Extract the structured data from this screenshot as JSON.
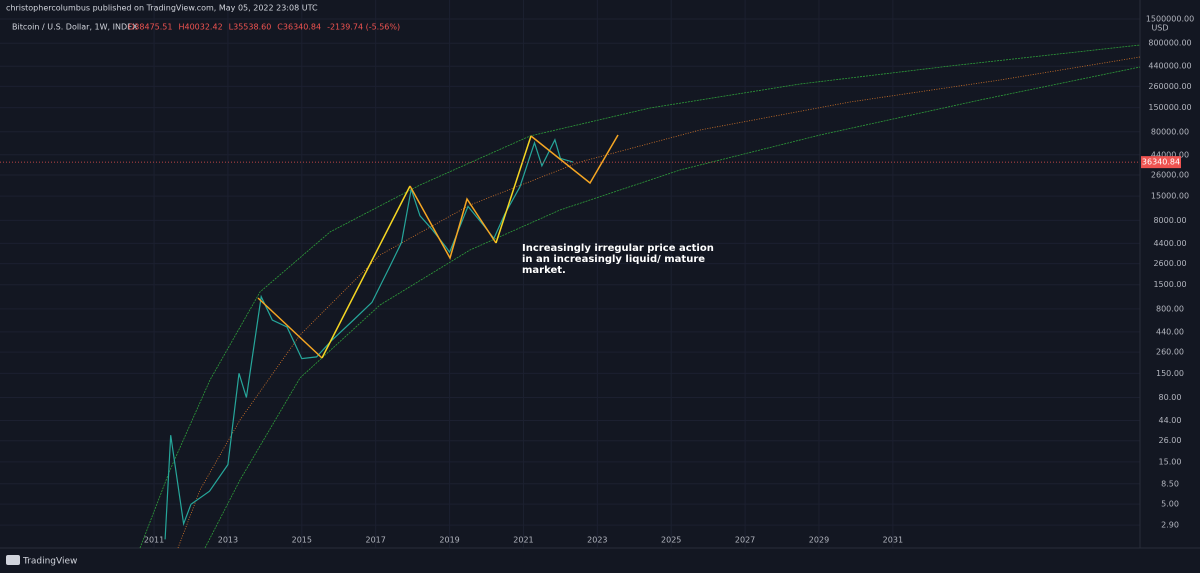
{
  "header": {
    "publisher": "christophercolumbus published on TradingView.com, May 05, 2022 23:08 UTC"
  },
  "footer": {
    "brand": "TradingView"
  },
  "chart_data": {
    "type": "line",
    "title": "Bitcoin / U.S. Dollar, 1W, INDEX",
    "ohlc": [
      "O38475.51",
      "H40032.42",
      "L35538.60",
      "C36340.84",
      "-2139.74 (-5.56%)"
    ],
    "currency": "USD",
    "log_y": true,
    "grid": true,
    "annotation": [
      "Increasingly irregular price action",
      "in an increasingly liquid/ mature",
      "market."
    ],
    "last_price": 36340.84,
    "x": [
      2011.3,
      2011.45,
      2011.8,
      2012.0,
      2012.5,
      2013.0,
      2013.3,
      2013.5,
      2013.9,
      2014.2,
      2014.6,
      2015.0,
      2015.4,
      2015.8,
      2016.4,
      2016.9,
      2017.4,
      2017.7,
      2017.96,
      2018.2,
      2018.5,
      2018.9,
      2019.0,
      2019.5,
      2019.9,
      2020.2,
      2020.5,
      2020.9,
      2021.3,
      2021.5,
      2021.85,
      2022.0,
      2022.34
    ],
    "series": [
      {
        "name": "Bitcoin / U.S. Dollar",
        "color": "#26a69a",
        "values": [
          2,
          30,
          3,
          5,
          7,
          14,
          150,
          80,
          1100,
          600,
          500,
          220,
          230,
          350,
          600,
          950,
          2500,
          4500,
          18000,
          9000,
          6500,
          4000,
          3500,
          11500,
          7200,
          5000,
          9500,
          19000,
          60000,
          33000,
          65000,
          40000,
          36340.84
        ]
      }
    ],
    "xlim": [
      2006.83,
      2037.69
    ],
    "xticks": [
      2011,
      2013,
      2015,
      2017,
      2019,
      2021,
      2023,
      2025,
      2027,
      2029,
      2031
    ],
    "ylim": [
      1.6,
      1800000
    ],
    "yticks": [
      {
        "value": 1500000,
        "label": "1500000.00"
      },
      {
        "value": 800000,
        "label": "800000.00"
      },
      {
        "value": 440000,
        "label": "440000.00"
      },
      {
        "value": 260000,
        "label": "260000.00"
      },
      {
        "value": 150000,
        "label": "150000.00"
      },
      {
        "value": 80000,
        "label": "80000.00"
      },
      {
        "value": 44000,
        "label": "44000.00"
      },
      {
        "value": 26000,
        "label": "26000.00"
      },
      {
        "value": 15000,
        "label": "15000.00"
      },
      {
        "value": 8000,
        "label": "8000.00"
      },
      {
        "value": 4400,
        "label": "4400.00"
      },
      {
        "value": 2600,
        "label": "2600.00"
      },
      {
        "value": 1500,
        "label": "1500.00"
      },
      {
        "value": 800,
        "label": "800.00"
      },
      {
        "value": 440,
        "label": "440.00"
      },
      {
        "value": 260,
        "label": "260.00"
      },
      {
        "value": 150,
        "label": "150.00"
      },
      {
        "value": 80,
        "label": "80.00"
      },
      {
        "value": 44,
        "label": "44.00"
      },
      {
        "value": 26,
        "label": "26.00"
      },
      {
        "value": 15,
        "label": "15.00"
      },
      {
        "value": 8.5,
        "label": "8.50"
      },
      {
        "value": 5,
        "label": "5.00"
      },
      {
        "value": 2.9,
        "label": "2.90"
      }
    ]
  }
}
